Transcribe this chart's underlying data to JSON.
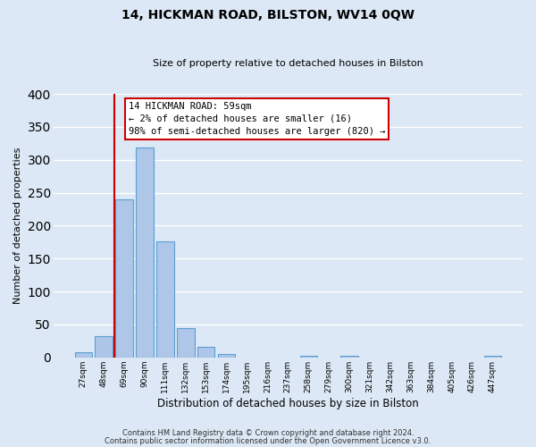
{
  "title": "14, HICKMAN ROAD, BILSTON, WV14 0QW",
  "subtitle": "Size of property relative to detached houses in Bilston",
  "xlabel": "Distribution of detached houses by size in Bilston",
  "ylabel": "Number of detached properties",
  "bar_labels": [
    "27sqm",
    "48sqm",
    "69sqm",
    "90sqm",
    "111sqm",
    "132sqm",
    "153sqm",
    "174sqm",
    "195sqm",
    "216sqm",
    "237sqm",
    "258sqm",
    "279sqm",
    "300sqm",
    "321sqm",
    "342sqm",
    "363sqm",
    "384sqm",
    "405sqm",
    "426sqm",
    "447sqm"
  ],
  "bar_values": [
    8,
    32,
    240,
    318,
    176,
    45,
    16,
    5,
    0,
    0,
    0,
    3,
    0,
    2,
    0,
    0,
    0,
    0,
    0,
    0,
    3
  ],
  "bar_color": "#aec6e8",
  "bar_edge_color": "#5a9fd4",
  "ylim": [
    0,
    400
  ],
  "yticks": [
    0,
    50,
    100,
    150,
    200,
    250,
    300,
    350,
    400
  ],
  "vline_color": "#cc0000",
  "annotation_title": "14 HICKMAN ROAD: 59sqm",
  "annotation_line1": "← 2% of detached houses are smaller (16)",
  "annotation_line2": "98% of semi-detached houses are larger (820) →",
  "annotation_box_color": "#ffffff",
  "annotation_box_edge": "#cc0000",
  "footer1": "Contains HM Land Registry data © Crown copyright and database right 2024.",
  "footer2": "Contains public sector information licensed under the Open Government Licence v3.0.",
  "background_color": "#dce8f5",
  "grid_color": "#ffffff",
  "fig_width": 6.0,
  "fig_height": 5.0
}
